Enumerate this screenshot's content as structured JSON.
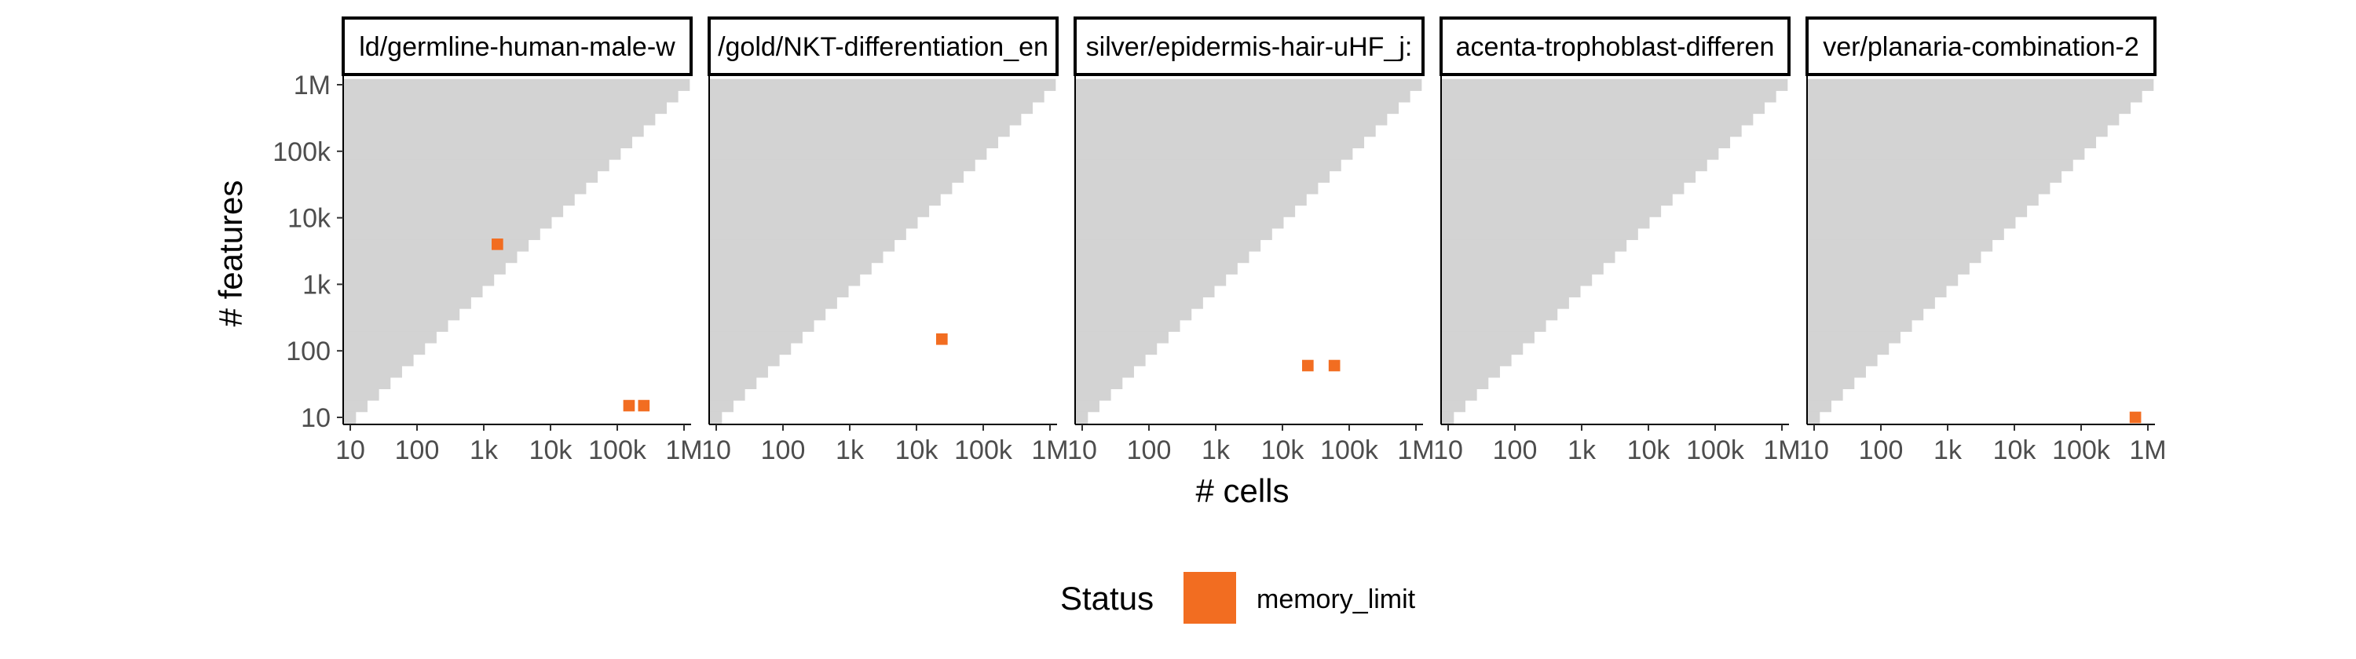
{
  "chart_data": {
    "type": "heatmap",
    "x_scale": "log10",
    "y_scale": "log10",
    "xlabel": "# cells",
    "ylabel": "# features",
    "x_ticks": [
      {
        "value": 10,
        "label": "10"
      },
      {
        "value": 100,
        "label": "100"
      },
      {
        "value": 1000,
        "label": "1k"
      },
      {
        "value": 10000,
        "label": "10k"
      },
      {
        "value": 100000,
        "label": "100k"
      },
      {
        "value": 1000000,
        "label": "1M"
      }
    ],
    "y_ticks": [
      {
        "value": 10,
        "label": "10"
      },
      {
        "value": 100,
        "label": "100"
      },
      {
        "value": 1000,
        "label": "1k"
      },
      {
        "value": 10000,
        "label": "10k"
      },
      {
        "value": 100000,
        "label": "100k"
      },
      {
        "value": 1000000,
        "label": "1M"
      }
    ],
    "xlim": [
      10,
      1000000
    ],
    "ylim": [
      10,
      1000000
    ],
    "background_color": "#d3d3d3",
    "grid": false,
    "legend": {
      "title": "Status",
      "position": "bottom",
      "entries": [
        {
          "label": "memory_limit",
          "color": "#f26d21"
        }
      ]
    },
    "panels": [
      {
        "title": "ld/germline-human-male-w",
        "memory_limit_cells": [
          {
            "cells": 1600,
            "features": 4000
          },
          {
            "cells": 150000,
            "features": 15
          },
          {
            "cells": 250000,
            "features": 15
          }
        ]
      },
      {
        "title": "/gold/NKT-differentiation_en",
        "memory_limit_cells": [
          {
            "cells": 24000,
            "features": 150
          }
        ]
      },
      {
        "title": "silver/epidermis-hair-uHF_j:",
        "memory_limit_cells": [
          {
            "cells": 24000,
            "features": 60
          },
          {
            "cells": 60000,
            "features": 60
          }
        ]
      },
      {
        "title": "acenta-trophoblast-differen",
        "memory_limit_cells": []
      },
      {
        "title": "ver/planaria-combination-2",
        "memory_limit_cells": [
          {
            "cells": 650000,
            "features": 10
          }
        ]
      }
    ]
  }
}
